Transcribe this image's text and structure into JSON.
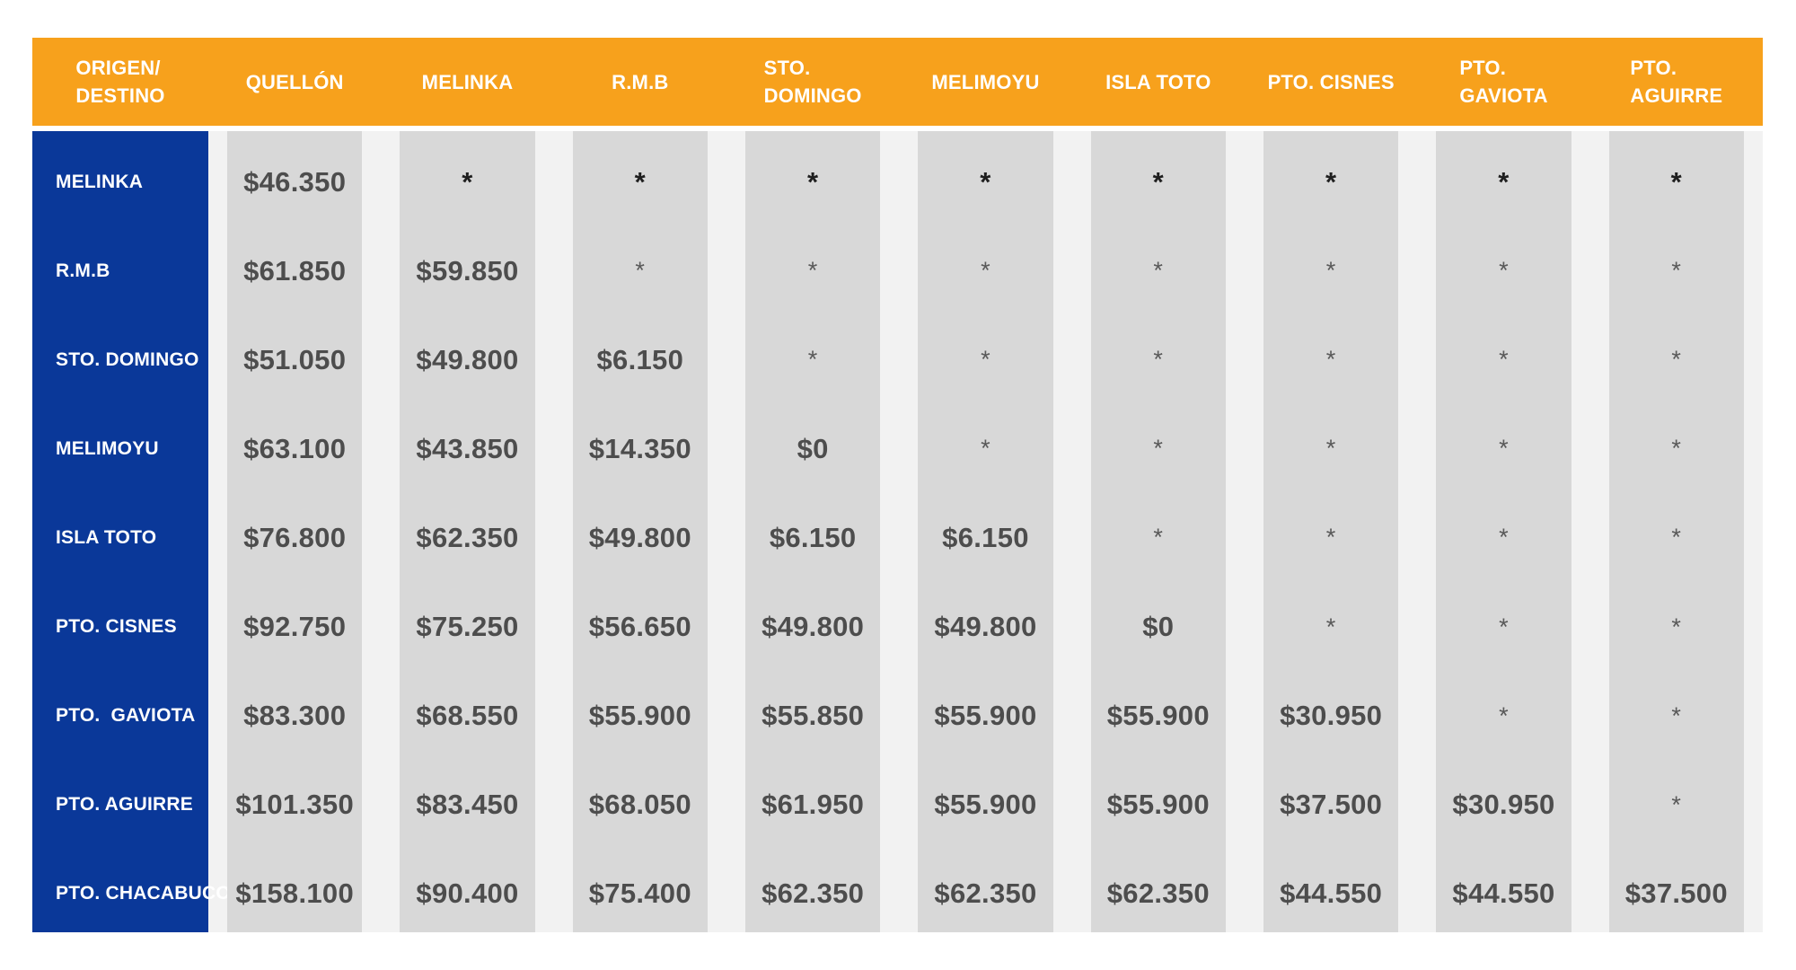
{
  "table": {
    "corner_header": "ORIGEN/\nDESTINO",
    "columns": [
      "QUELLÓN",
      "MELINKA",
      "R.M.B",
      "STO.\nDOMINGO",
      "MELIMOYU",
      "ISLA TOTO",
      "PTO. CISNES",
      "PTO.\nGAVIOTA",
      "PTO.\nAGUIRRE"
    ],
    "rows": [
      {
        "label": "MELINKA",
        "values": [
          "$46.350",
          "*",
          "*",
          "*",
          "*",
          "*",
          "*",
          "*",
          "*"
        ]
      },
      {
        "label": "R.M.B",
        "values": [
          "$61.850",
          "$59.850",
          "*",
          "*",
          "*",
          "*",
          "*",
          "*",
          "*"
        ]
      },
      {
        "label": "STO. DOMINGO",
        "values": [
          "$51.050",
          "$49.800",
          "$6.150",
          "*",
          "*",
          "*",
          "*",
          "*",
          "*"
        ]
      },
      {
        "label": "MELIMOYU",
        "values": [
          "$63.100",
          "$43.850",
          "$14.350",
          "$0",
          "*",
          "*",
          "*",
          "*",
          "*"
        ]
      },
      {
        "label": "ISLA TOTO",
        "values": [
          "$76.800",
          "$62.350",
          "$49.800",
          "$6.150",
          "$6.150",
          "*",
          "*",
          "*",
          "*"
        ]
      },
      {
        "label": "PTO. CISNES",
        "values": [
          "$92.750",
          "$75.250",
          "$56.650",
          "$49.800",
          "$49.800",
          "$0",
          "*",
          "*",
          "*"
        ]
      },
      {
        "label": "PTO.  GAVIOTA",
        "values": [
          "$83.300",
          "$68.550",
          "$55.900",
          "$55.850",
          "$55.900",
          "$55.900",
          "$30.950",
          "*",
          "*"
        ]
      },
      {
        "label": "PTO. AGUIRRE",
        "values": [
          "$101.350",
          "$83.450",
          "$68.050",
          "$61.950",
          "$55.900",
          "$55.900",
          "$37.500",
          "$30.950",
          "*"
        ]
      },
      {
        "label": "PTO. CHACABUCO",
        "values": [
          "$158.100",
          "$90.400",
          "$75.400",
          "$62.350",
          "$62.350",
          "$62.350",
          "$44.550",
          "$44.550",
          "$37.500"
        ]
      }
    ]
  },
  "colors": {
    "header_bg": "#F7A11C",
    "header_text": "#FFFFFF",
    "label_bg": "#0A3899",
    "stripe_bg": "#D8D8D8",
    "body_gap": "#F2F2F2",
    "price_text": "#4D4D4D",
    "asterisk_strong": "#1F1F1F",
    "asterisk_dim": "#595959"
  }
}
